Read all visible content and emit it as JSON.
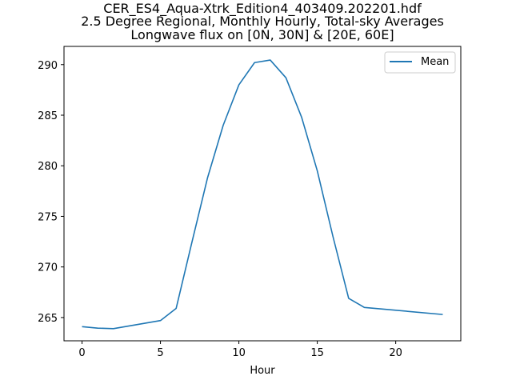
{
  "chart_data": {
    "type": "line",
    "title_lines": [
      "CER_ES4_Aqua-Xtrk_Edition4_403409.202201.hdf",
      "2.5 Degree Regional, Monthly Hourly, Total-sky Averages",
      "Longwave flux on [0N, 30N] & [20E, 60E]"
    ],
    "xlabel": "Hour",
    "ylabel": "",
    "xlim": [
      -1.15,
      24.15
    ],
    "ylim": [
      262.7,
      291.8
    ],
    "x_ticks": [
      0,
      5,
      10,
      15,
      20
    ],
    "y_ticks": [
      265,
      270,
      275,
      280,
      285,
      290
    ],
    "grid": false,
    "legend_position": "top-right",
    "series": [
      {
        "name": "Mean",
        "color": "#1f77b4",
        "x": [
          0,
          1,
          2,
          5,
          6,
          7,
          8,
          9,
          10,
          11,
          12,
          13,
          14,
          15,
          16,
          17,
          18,
          23
        ],
        "y": [
          264.1,
          263.95,
          263.9,
          264.7,
          265.9,
          272.4,
          278.8,
          284.0,
          288.0,
          290.2,
          290.45,
          288.7,
          284.8,
          279.5,
          273.0,
          266.9,
          266.0,
          265.3
        ]
      }
    ]
  }
}
